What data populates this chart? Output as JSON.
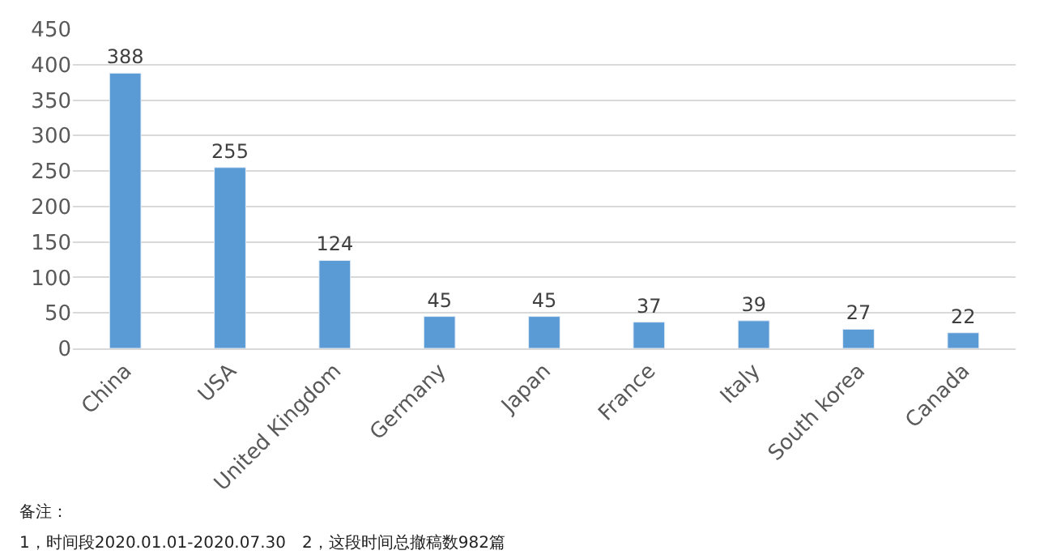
{
  "chart_data": {
    "type": "bar",
    "categories": [
      "China",
      "USA",
      "United Kingdom",
      "Germany",
      "Japan",
      "France",
      "Italy",
      "South korea",
      "Canada"
    ],
    "values": [
      388,
      255,
      124,
      45,
      45,
      37,
      39,
      27,
      22
    ],
    "color": "#5b9bd5",
    "data_labels": true,
    "ylim": [
      0,
      450
    ],
    "yticks": [
      0,
      50,
      100,
      150,
      200,
      250,
      300,
      350,
      400,
      450
    ],
    "grid": "y",
    "legend": false,
    "annotations": [
      "备注：",
      "1，时间段2020.01.01-2020.07.30　2，这段时间总撤稿数982篇"
    ]
  }
}
